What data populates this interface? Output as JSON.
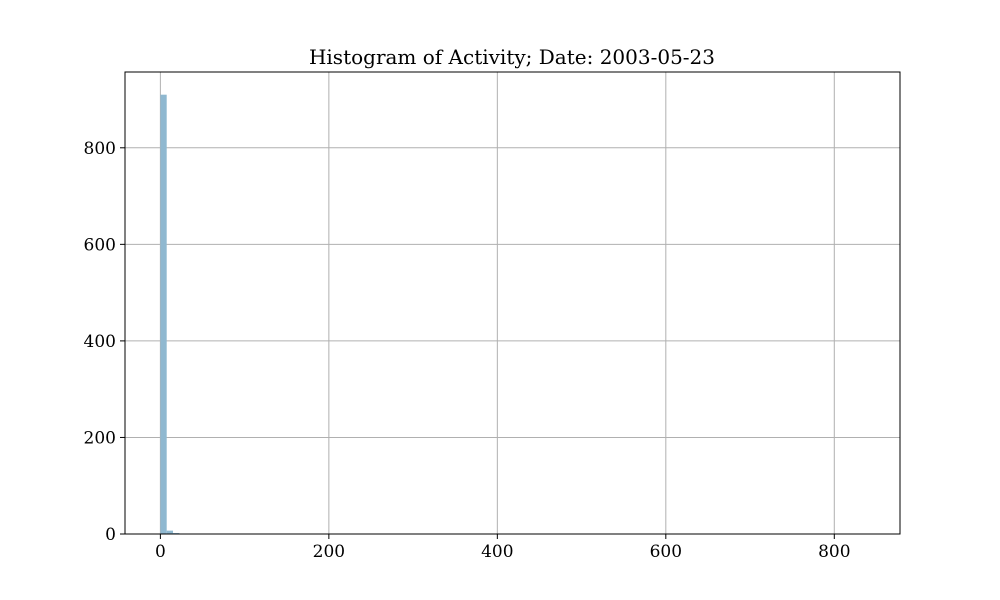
{
  "chart_data": {
    "type": "bar",
    "title": "Histogram of Activity; Date: 2003-05-23",
    "xlabel": "",
    "ylabel": "",
    "xlim": [
      -42,
      878
    ],
    "ylim": [
      0,
      957
    ],
    "grid": true,
    "bar_color": "#8fb8d0",
    "x_ticks": [
      0,
      200,
      400,
      600,
      800
    ],
    "y_ticks": [
      0,
      200,
      400,
      600,
      800
    ],
    "bins": [
      {
        "x0": 0,
        "x1": 7.5,
        "count": 910
      },
      {
        "x0": 7.5,
        "x1": 15,
        "count": 7
      },
      {
        "x0": 15,
        "x1": 22.5,
        "count": 2
      },
      {
        "x0": 157.5,
        "x1": 165,
        "count": 1
      }
    ]
  }
}
